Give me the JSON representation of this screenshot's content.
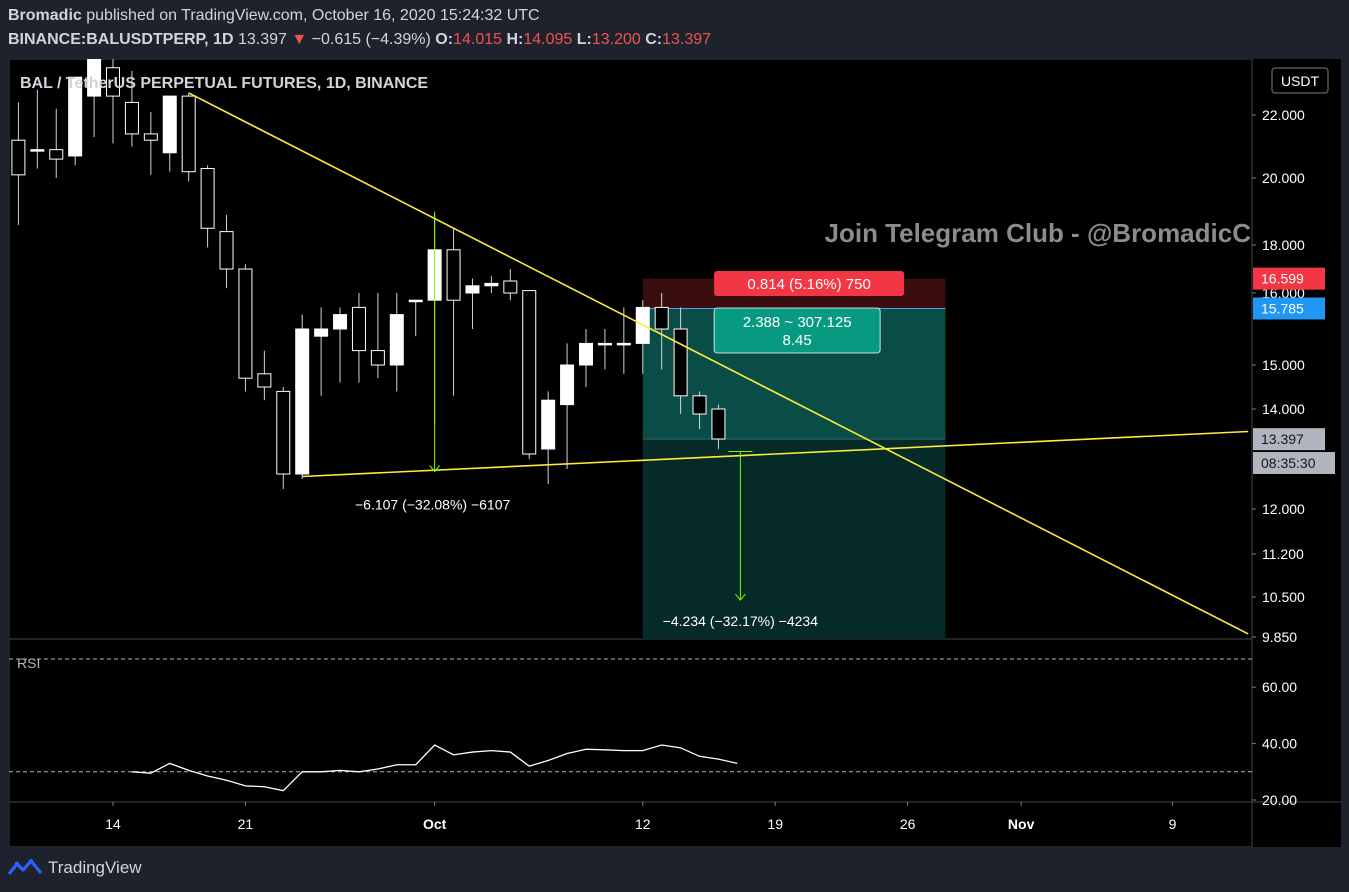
{
  "header": {
    "publisher": "Bromadic",
    "published_text": "published on TradingView.com, October 16, 2020 15:24:32 UTC",
    "symbol": "BINANCE:BALUSDTPERP, 1D",
    "last": "13.397",
    "change": "−0.615 (−4.39%)",
    "o_label": "O:",
    "o": "14.015",
    "h_label": "H:",
    "h": "14.095",
    "l_label": "L:",
    "l": "13.200",
    "c_label": "C:",
    "c": "13.397"
  },
  "footer": {
    "brand": "TradingView"
  },
  "chart_data": {
    "type": "candlestick",
    "title": "BAL / TetherUS PERPETUAL FUTURES, 1D, BINANCE",
    "currency_label": "USDT",
    "watermark": "Join Telegram Club - @BromadicC",
    "price_axis_ticks": [
      "22.000",
      "20.000",
      "18.000",
      "16.000",
      "15.000",
      "14.000",
      "12.000",
      "11.200",
      "10.500",
      "9.850"
    ],
    "price_axis_values": [
      22,
      20,
      18,
      16,
      15,
      14,
      12,
      11.2,
      10.5,
      9.85
    ],
    "x_axis_ticks": [
      {
        "label": "14",
        "day": 0
      },
      {
        "label": "21",
        "day": 7
      },
      {
        "label": "Oct",
        "day": 17
      },
      {
        "label": "12",
        "day": 28
      },
      {
        "label": "19",
        "day": 35
      },
      {
        "label": "26",
        "day": 42
      },
      {
        "label": "Nov",
        "day": 48
      },
      {
        "label": "9",
        "day": 56
      }
    ],
    "date_start": "2020-09-14",
    "candles": [
      {
        "d": -5,
        "o": 21.2,
        "h": 22.4,
        "l": 18.6,
        "c": 20.1
      },
      {
        "d": -4,
        "o": 20.9,
        "h": 22.8,
        "l": 20.3,
        "c": 20.9
      },
      {
        "d": -3,
        "o": 20.9,
        "h": 22.2,
        "l": 20.0,
        "c": 20.6
      },
      {
        "d": -2,
        "o": 20.7,
        "h": 23.2,
        "l": 20.4,
        "c": 23.2
      },
      {
        "d": -1,
        "o": 22.6,
        "h": 23.8,
        "l": 21.3,
        "c": 23.9
      },
      {
        "d": 0,
        "o": 23.5,
        "h": 24.1,
        "l": 21.1,
        "c": 22.6
      },
      {
        "d": 1,
        "o": 22.4,
        "h": 23.4,
        "l": 21.0,
        "c": 21.4
      },
      {
        "d": 2,
        "o": 21.4,
        "h": 22.1,
        "l": 20.1,
        "c": 21.2
      },
      {
        "d": 3,
        "o": 20.8,
        "h": 22.6,
        "l": 20.2,
        "c": 22.6
      },
      {
        "d": 4,
        "o": 22.6,
        "h": 22.7,
        "l": 19.9,
        "c": 20.2
      },
      {
        "d": 5,
        "o": 20.3,
        "h": 20.4,
        "l": 17.9,
        "c": 18.5
      },
      {
        "d": 6,
        "o": 18.4,
        "h": 18.9,
        "l": 16.2,
        "c": 17.0
      },
      {
        "d": 7,
        "o": 17.0,
        "h": 17.2,
        "l": 14.4,
        "c": 14.7
      },
      {
        "d": 8,
        "o": 14.8,
        "h": 15.2,
        "l": 14.2,
        "c": 14.5
      },
      {
        "d": 9,
        "o": 14.4,
        "h": 14.5,
        "l": 12.4,
        "c": 12.7
      },
      {
        "d": 10,
        "o": 12.7,
        "h": 15.7,
        "l": 12.6,
        "c": 15.5
      },
      {
        "d": 11,
        "o": 15.4,
        "h": 15.8,
        "l": 14.3,
        "c": 15.5
      },
      {
        "d": 12,
        "o": 15.5,
        "h": 15.8,
        "l": 14.6,
        "c": 15.7
      },
      {
        "d": 13,
        "o": 15.8,
        "h": 16.0,
        "l": 14.6,
        "c": 15.2
      },
      {
        "d": 14,
        "o": 15.2,
        "h": 16.0,
        "l": 14.7,
        "c": 15.0
      },
      {
        "d": 15,
        "o": 15.0,
        "h": 16.0,
        "l": 14.4,
        "c": 15.7
      },
      {
        "d": 16,
        "o": 15.9,
        "h": 15.9,
        "l": 15.4,
        "c": 15.9
      },
      {
        "d": 17,
        "o": 15.9,
        "h": 18.9,
        "l": 13.7,
        "c": 17.8
      },
      {
        "d": 18,
        "o": 17.8,
        "h": 18.5,
        "l": 14.3,
        "c": 15.9
      },
      {
        "d": 19,
        "o": 16.0,
        "h": 16.6,
        "l": 15.5,
        "c": 16.3
      },
      {
        "d": 20,
        "o": 16.3,
        "h": 16.7,
        "l": 16.0,
        "c": 16.4
      },
      {
        "d": 21,
        "o": 16.5,
        "h": 17.0,
        "l": 15.9,
        "c": 16.0
      },
      {
        "d": 22,
        "o": 16.1,
        "h": 16.1,
        "l": 13.0,
        "c": 13.1
      },
      {
        "d": 23,
        "o": 13.2,
        "h": 14.4,
        "l": 12.5,
        "c": 14.2
      },
      {
        "d": 24,
        "o": 14.1,
        "h": 15.3,
        "l": 12.8,
        "c": 15.0
      },
      {
        "d": 25,
        "o": 15.0,
        "h": 15.5,
        "l": 14.5,
        "c": 15.3
      },
      {
        "d": 26,
        "o": 15.3,
        "h": 15.5,
        "l": 14.9,
        "c": 15.3
      },
      {
        "d": 27,
        "o": 15.3,
        "h": 15.8,
        "l": 14.8,
        "c": 15.3
      },
      {
        "d": 28,
        "o": 15.3,
        "h": 15.9,
        "l": 14.8,
        "c": 15.8
      },
      {
        "d": 29,
        "o": 15.8,
        "h": 16.0,
        "l": 14.9,
        "c": 15.5
      },
      {
        "d": 30,
        "o": 15.5,
        "h": 15.8,
        "l": 13.9,
        "c": 14.3
      },
      {
        "d": 31,
        "o": 14.3,
        "h": 14.4,
        "l": 13.6,
        "c": 13.9
      },
      {
        "d": 32,
        "o": 14.0,
        "h": 14.1,
        "l": 13.2,
        "c": 13.4
      }
    ],
    "trendlines": [
      {
        "color": "#ffeb3b",
        "from": {
          "d": 4,
          "p": 22.7
        },
        "to": {
          "d": 60,
          "p": 9.9
        }
      },
      {
        "color": "#ffeb3b",
        "from": {
          "d": 10,
          "p": 12.65
        },
        "to": {
          "d": 60,
          "p": 13.55
        }
      }
    ],
    "position": {
      "side": "short",
      "start_day": 28,
      "end_day": 44,
      "entry": 15.785,
      "stop": 16.599,
      "target": 9.85,
      "stop_label": "0.814 (5.16%) 750",
      "mid_label_1": "2.388 ~ 307.125",
      "mid_label_2": "8.45"
    },
    "measures": [
      {
        "label": "−6.107 (−32.08%) −6107",
        "day": 17,
        "from": 19.0,
        "to": 12.75
      },
      {
        "label": "−4.234 (−32.17%) −4234",
        "day": 33,
        "from": 13.15,
        "to": 10.45
      }
    ],
    "price_labels": [
      {
        "text": "16.599",
        "bg": "#f23645",
        "price": 16.599
      },
      {
        "text": "15.785",
        "bg": "#2196f3",
        "price": 15.785
      },
      {
        "text": "13.397",
        "bg": "#b2b5be",
        "price": 13.397
      },
      {
        "text": "08:35:30",
        "bg": "#b2b5be",
        "price": 13.05
      }
    ],
    "rsi": {
      "label": "RSI",
      "ticks": [
        "60.00",
        "40.00",
        "20.00"
      ],
      "tick_values": [
        60,
        40,
        20
      ],
      "band_upper": 70,
      "band_lower": 30,
      "start_day": 1,
      "values": [
        30,
        29.5,
        33,
        30.5,
        28.5,
        27,
        25,
        24.7,
        23.3,
        30,
        30,
        30.5,
        30,
        31,
        32.5,
        32.5,
        39.5,
        36,
        37,
        37.5,
        37,
        32,
        34,
        36.5,
        38,
        37.8,
        37.5,
        37.5,
        39.5,
        38.5,
        35.5,
        34.5,
        33
      ]
    }
  }
}
